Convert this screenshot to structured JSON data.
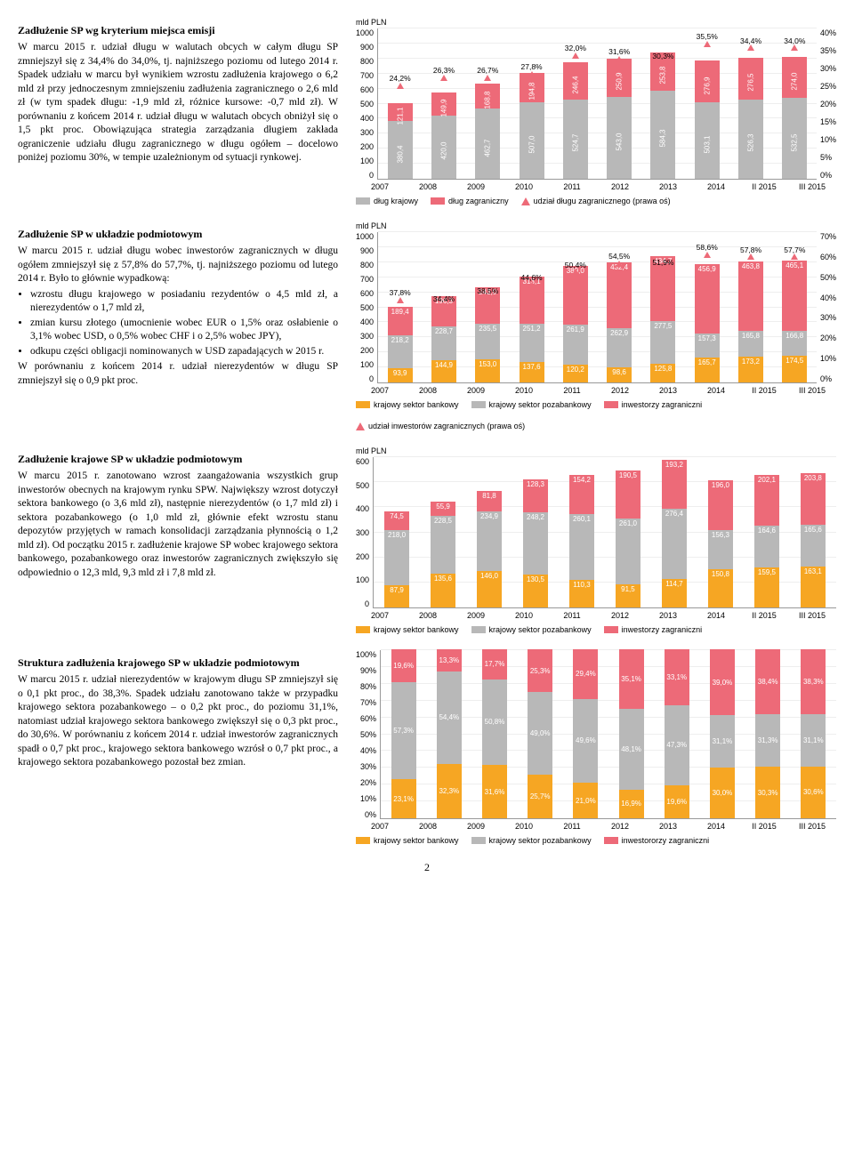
{
  "colors": {
    "orange": "#f6a623",
    "grey": "#b8b8b8",
    "pink": "#ed6a78",
    "grid": "#eeeeee",
    "tri_outline": "#ed6a78"
  },
  "page_number": "2",
  "section1": {
    "title": "Zadłużenie SP wg kryterium miejsca emisji",
    "body": "W marcu 2015 r. udział długu w walutach obcych w całym długu SP zmniejszył się z 34,4% do 34,0%, tj. najniższego poziomu od lutego 2014 r. Spadek udziału w marcu był wynikiem wzrostu zadłużenia krajowego o 6,2 mld zł przy jednoczesnym zmniejszeniu zadłużenia zagranicznego o 2,6 mld zł (w tym spadek długu: -1,9 mld zł, różnice kursowe: -0,7 mld zł). W porównaniu z końcem 2014 r. udział długu w walutach obcych obniżył się o 1,5 pkt proc. Obowiązująca strategia zarządzania długiem zakłada ograniczenie udziału długu zagranicznego w długu ogółem – docelowo poniżej poziomu 30%, w tempie uzależnionym od sytuacji rynkowej."
  },
  "section2": {
    "title": "Zadłużenie SP w układzie podmiotowym",
    "body_intro": "W marcu 2015 r. udział długu wobec inwestorów zagranicznych w długu ogółem zmniejszył się z 57,8% do 57,7%, tj. najniższego poziomu od lutego 2014 r. Było to głównie wypadkową:",
    "bullets": [
      "wzrostu długu krajowego w posiadaniu rezydentów o 4,5 mld zł, a nierezydentów o 1,7 mld zł,",
      "zmian kursu złotego (umocnienie wobec EUR o 1,5% oraz osłabienie o 3,1% wobec USD, o 0,5% wobec CHF i o 2,5% wobec JPY),",
      "odkupu części obligacji nominowanych w USD zapadających w 2015 r."
    ],
    "body_end": "W porównaniu z końcem 2014 r. udział nierezydentów w długu SP zmniejszył się o 0,9 pkt proc."
  },
  "section3": {
    "title": "Zadłużenie krajowe SP w układzie podmiotowym",
    "body": "W marcu 2015 r. zanotowano wzrost zaangażowania wszystkich grup inwestorów obecnych na krajowym rynku SPW. Największy wzrost dotyczył sektora bankowego (o 3,6 mld zł), następnie nierezydentów (o 1,7 mld zł) i sektora pozabankowego (o 1,0 mld zł, głównie efekt wzrostu stanu depozytów przyjętych w ramach konsolidacji zarządzania płynnością o 1,2 mld zł). Od początku 2015 r. zadłużenie krajowe SP wobec krajowego sektora bankowego, pozabankowego oraz inwestorów zagranicznych zwiększyło się odpowiednio o 12,3 mld, 9,3 mld zł i 7,8 mld zł."
  },
  "section4": {
    "title": "Struktura zadłużenia krajowego SP w układzie podmiotowym",
    "body": "W marcu 2015 r. udział nierezydentów w krajowym długu SP zmniejszył się o 0,1 pkt proc., do 38,3%. Spadek udziału zanotowano także w przypadku krajowego sektora pozabankowego – o 0,2 pkt proc., do poziomu 31,1%, natomiast udział krajowego sektora bankowego zwiększył się o 0,3 pkt proc., do 30,6%. W porównaniu z końcem 2014 r. udział inwestorów zagranicznych spadł o 0,7 pkt proc., krajowego sektora bankowego wzrósł o 0,7 pkt proc., a krajowego sektora pozabankowego pozostał bez zmian."
  },
  "chart1": {
    "unit": "mld PLN",
    "ymax": 1000,
    "ytick": 100,
    "ymax_r": 40,
    "ytick_r": 5,
    "years": [
      "2007",
      "2008",
      "2009",
      "2010",
      "2011",
      "2012",
      "2013",
      "2014",
      "II 2015",
      "III 2015"
    ],
    "krajowy": [
      380.4,
      420.0,
      462.7,
      507.0,
      524.7,
      543.0,
      584.3,
      503.1,
      526.3,
      532.5
    ],
    "zagraniczny": [
      121.1,
      149.9,
      168.8,
      194.8,
      246.4,
      250.9,
      253.8,
      276.9,
      276.5,
      274.0
    ],
    "pct": [
      "24,2%",
      "26,3%",
      "26,7%",
      "27,8%",
      "32,0%",
      "31,6%",
      "30,3%",
      "35,5%",
      "34,4%",
      "34,0%"
    ],
    "legend": [
      "dług krajowy",
      "dług zagraniczny",
      "udział długu zagranicznego (prawa oś)"
    ]
  },
  "chart2": {
    "unit": "mld PLN",
    "ymax": 1000,
    "ytick": 100,
    "ymax_r": 70,
    "ytick_r": 10,
    "years": [
      "2007",
      "2008",
      "2009",
      "2010",
      "2011",
      "2012",
      "2013",
      "2014",
      "II 2015",
      "III 2015"
    ],
    "bankowy": [
      93.9,
      144.9,
      153.0,
      137.6,
      120.2,
      98.6,
      125.8,
      165.7,
      173.2,
      174.5
    ],
    "pozabankowy": [
      218.2,
      228.7,
      235.5,
      251.2,
      261.9,
      262.9,
      277.5,
      157.3,
      165.8,
      166.8
    ],
    "zagraniczni": [
      189.4,
      196.3,
      243.0,
      313.1,
      389.0,
      432.4,
      434.7,
      456.9,
      463.8,
      465.1
    ],
    "pct": [
      "37,8%",
      "34,4%",
      "38,5%",
      "44,6%",
      "50,4%",
      "54,5%",
      "51,9%",
      "58,6%",
      "57,8%",
      "57,7%"
    ],
    "legend": [
      "krajowy sektor bankowy",
      "krajowy sektor pozabankowy",
      "inwestorzy zagraniczni",
      "udział inwestorów zagranicznych (prawa oś)"
    ]
  },
  "chart3": {
    "unit": "mld PLN",
    "ymax": 600,
    "ytick": 100,
    "years": [
      "2007",
      "2008",
      "2009",
      "2010",
      "2011",
      "2012",
      "2013",
      "2014",
      "II 2015",
      "III 2015"
    ],
    "bankowy": [
      87.9,
      135.6,
      146.0,
      130.5,
      110.3,
      91.5,
      114.7,
      150.8,
      159.5,
      163.1
    ],
    "pozabankowy": [
      218.0,
      228.5,
      234.9,
      248.2,
      260.1,
      261.0,
      276.4,
      156.3,
      164.6,
      165.6
    ],
    "zagraniczni": [
      74.5,
      55.9,
      81.8,
      128.3,
      154.2,
      190.5,
      193.2,
      196.0,
      202.1,
      203.8
    ],
    "legend": [
      "krajowy sektor bankowy",
      "krajowy sektor pozabankowy",
      "inwestorzy zagraniczni"
    ]
  },
  "chart4": {
    "ymax": 100,
    "ytick": 10,
    "years": [
      "2007",
      "2008",
      "2009",
      "2010",
      "2011",
      "2012",
      "2013",
      "2014",
      "II 2015",
      "III 2015"
    ],
    "bankowy": [
      "23,1%",
      "32,3%",
      "31,6%",
      "25,7%",
      "21,0%",
      "16,9%",
      "19,6%",
      "30,0%",
      "30,3%",
      "30,6%"
    ],
    "pozabankowy": [
      "57,3%",
      "54,4%",
      "50,8%",
      "49,0%",
      "49,6%",
      "48,1%",
      "47,3%",
      "31,1%",
      "31,3%",
      "31,1%"
    ],
    "zagraniczni": [
      "19,6%",
      "13,3%",
      "17,7%",
      "25,3%",
      "29,4%",
      "35,1%",
      "33,1%",
      "39,0%",
      "38,4%",
      "38,3%"
    ],
    "bankowy_v": [
      23.1,
      32.3,
      31.6,
      25.7,
      21.0,
      16.9,
      19.6,
      30.0,
      30.3,
      30.6
    ],
    "pozabankowy_v": [
      57.3,
      54.4,
      50.8,
      49.0,
      49.6,
      48.1,
      47.3,
      31.1,
      31.3,
      31.1
    ],
    "zagraniczni_v": [
      19.6,
      13.3,
      17.7,
      25.3,
      29.4,
      35.1,
      33.1,
      39.0,
      38.4,
      38.3
    ],
    "legend": [
      "krajowy sektor bankowy",
      "krajowy sektor pozabankowy",
      "inwestororzy zagraniczni"
    ]
  }
}
